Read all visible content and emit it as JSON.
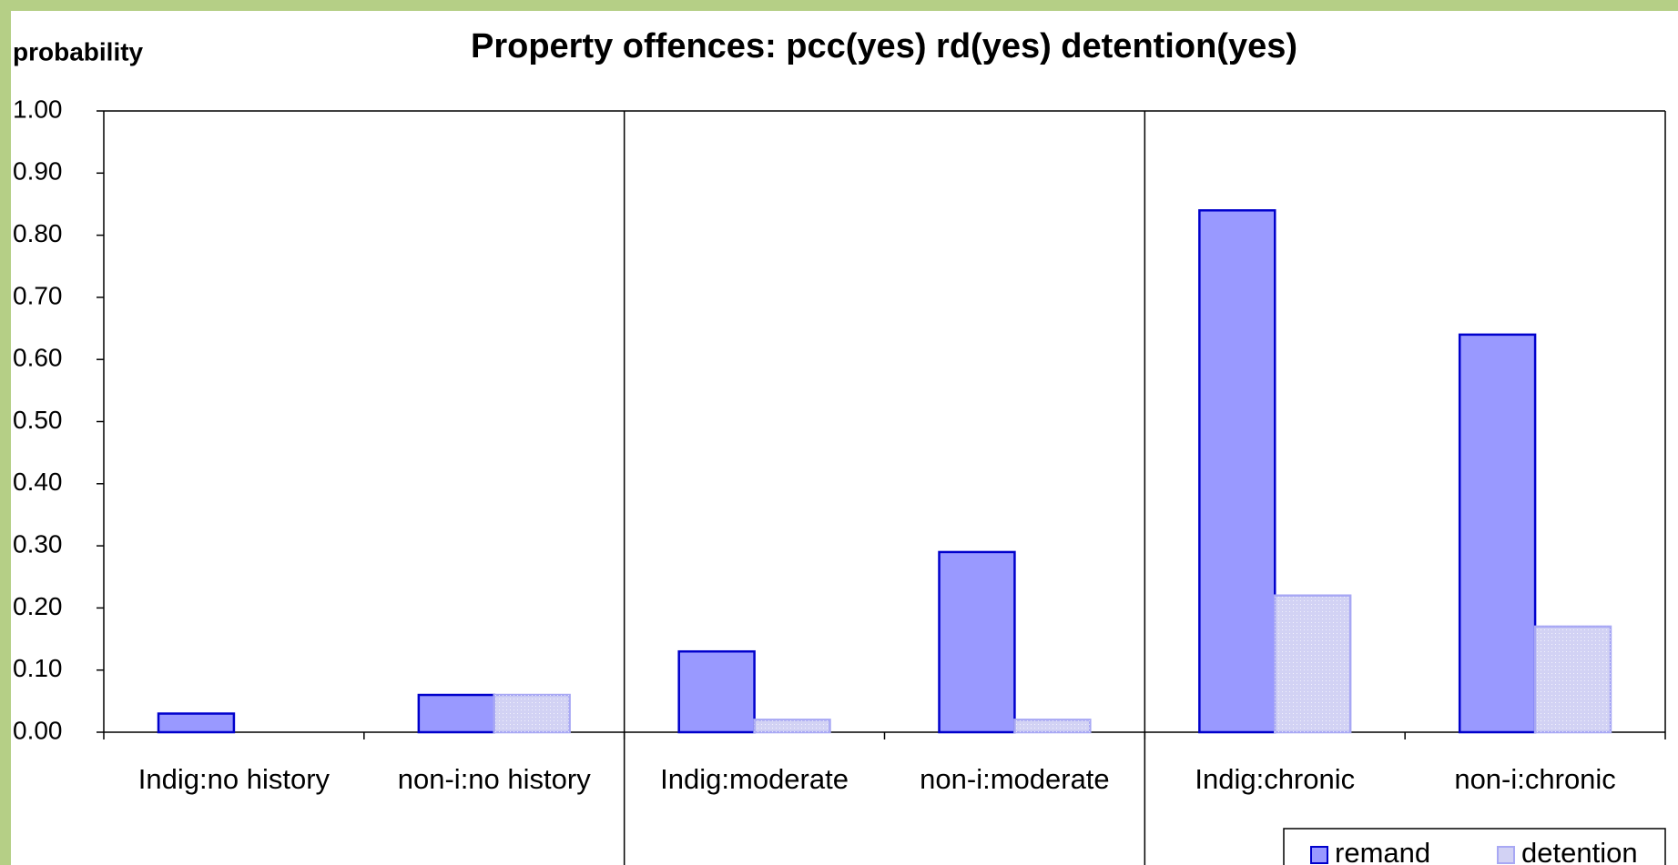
{
  "chart_data": {
    "type": "bar",
    "title": "Property offences: pcc(yes) rd(yes) detention(yes)",
    "y_label": "probability",
    "categories": [
      "Indig:no history",
      "non-i:no history",
      "Indig:moderate",
      "non-i:moderate",
      "Indig:chronic",
      "non-i:chronic"
    ],
    "series": [
      {
        "name": "remand",
        "color": "#9999ff",
        "values": [
          0.03,
          0.06,
          0.13,
          0.29,
          0.84,
          0.64
        ]
      },
      {
        "name": "detention",
        "color": "#d2d2f4",
        "values": [
          0.0,
          0.06,
          0.02,
          0.02,
          0.22,
          0.17
        ]
      }
    ],
    "ylim": [
      0,
      1
    ],
    "yticks": [
      {
        "value": 0,
        "label": "0.00"
      },
      {
        "value": 0.1,
        "label": "0.10"
      },
      {
        "value": 0.2,
        "label": "0.20"
      },
      {
        "value": 0.3,
        "label": "0.30"
      },
      {
        "value": 0.4,
        "label": "0.40"
      },
      {
        "value": 0.5,
        "label": "0.50"
      },
      {
        "value": 0.6,
        "label": "0.60"
      },
      {
        "value": 0.7,
        "label": "0.70"
      },
      {
        "value": 0.8,
        "label": "0.80"
      },
      {
        "value": 0.9,
        "label": "0.90"
      },
      {
        "value": 1,
        "label": "1.00"
      }
    ],
    "grid": false,
    "legend": "bottom-right"
  }
}
